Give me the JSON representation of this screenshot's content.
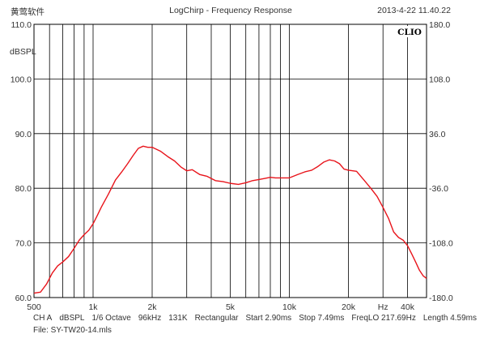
{
  "header": {
    "brand": "黄莺软件",
    "title": "LogChirp - Frequency Response",
    "timestamp": "2013-4-22 11.40.22",
    "logo_text": "CLIO"
  },
  "chart_data": {
    "type": "line",
    "title": "LogChirp - Frequency Response",
    "xscale": "log",
    "xlim": [
      500,
      50000
    ],
    "x_tick_labels": [
      "500",
      "1k",
      "2k",
      "5k",
      "10k",
      "20k",
      "Hz",
      "40k"
    ],
    "x_tick_values": [
      500,
      1000,
      2000,
      5000,
      10000,
      20000,
      30000,
      40000
    ],
    "ylabel": "dBSPL",
    "ylim": [
      60,
      110
    ],
    "y_tick_labels": [
      "110.0",
      "100.0",
      "90.0",
      "80.0",
      "70.0",
      "60.0"
    ],
    "y_tick_values": [
      110,
      100,
      90,
      80,
      70,
      60
    ],
    "y2lim": [
      -180,
      180
    ],
    "y2_tick_labels": [
      "180.0",
      "108.0",
      "36.0",
      "-36.0",
      "-108.0",
      "-180.0"
    ],
    "y2_tick_values": [
      180,
      108,
      36,
      -36,
      -108,
      -180
    ],
    "grid": true,
    "line_color": "#e8141b",
    "series": [
      {
        "x": [
          500,
          540,
          580,
          620,
          660,
          700,
          750,
          800,
          850,
          900,
          950,
          1000,
          1050,
          1100,
          1200,
          1300,
          1400,
          1500,
          1600,
          1700,
          1800,
          1900,
          2000,
          2200,
          2400,
          2600,
          2800,
          3000,
          3200,
          3500,
          3800,
          4200,
          4600,
          5000,
          5500,
          6000,
          6500,
          7000,
          7500,
          8000,
          8500,
          9000,
          10000,
          11000,
          12000,
          13000,
          14000,
          15000,
          16000,
          17000,
          18000,
          19000,
          20000,
          22000,
          24000,
          26000,
          28000,
          30000,
          32000,
          34000,
          36000,
          38000,
          40000,
          42000,
          44000,
          46000,
          48000,
          50000
        ],
        "y": [
          60.8,
          61.0,
          62.5,
          64.5,
          65.8,
          66.5,
          67.5,
          69.0,
          70.5,
          71.5,
          72.3,
          73.5,
          75.0,
          76.5,
          79.0,
          81.5,
          83.0,
          84.5,
          86.0,
          87.3,
          87.7,
          87.5,
          87.5,
          86.8,
          85.8,
          85.0,
          83.9,
          83.2,
          83.4,
          82.5,
          82.2,
          81.4,
          81.2,
          80.9,
          80.7,
          81.0,
          81.4,
          81.6,
          81.8,
          82.0,
          81.9,
          81.9,
          81.9,
          82.5,
          83.0,
          83.3,
          84.0,
          84.8,
          85.2,
          85.0,
          84.5,
          83.5,
          83.3,
          83.1,
          81.5,
          80.0,
          78.5,
          76.5,
          74.5,
          72.0,
          71.0,
          70.5,
          69.5,
          68.0,
          66.5,
          65.0,
          64.0,
          63.5
        ]
      }
    ]
  },
  "footer": {
    "items": [
      "CH A",
      "dBSPL",
      "1/6 Octave",
      "96kHz",
      "131K",
      "Rectangular",
      "Start 2.90ms",
      "Stop 7.49ms",
      "FreqLO 217.69Hz",
      "Length 4.59ms"
    ],
    "file_label": "File: SY-TW20-14.mls"
  }
}
